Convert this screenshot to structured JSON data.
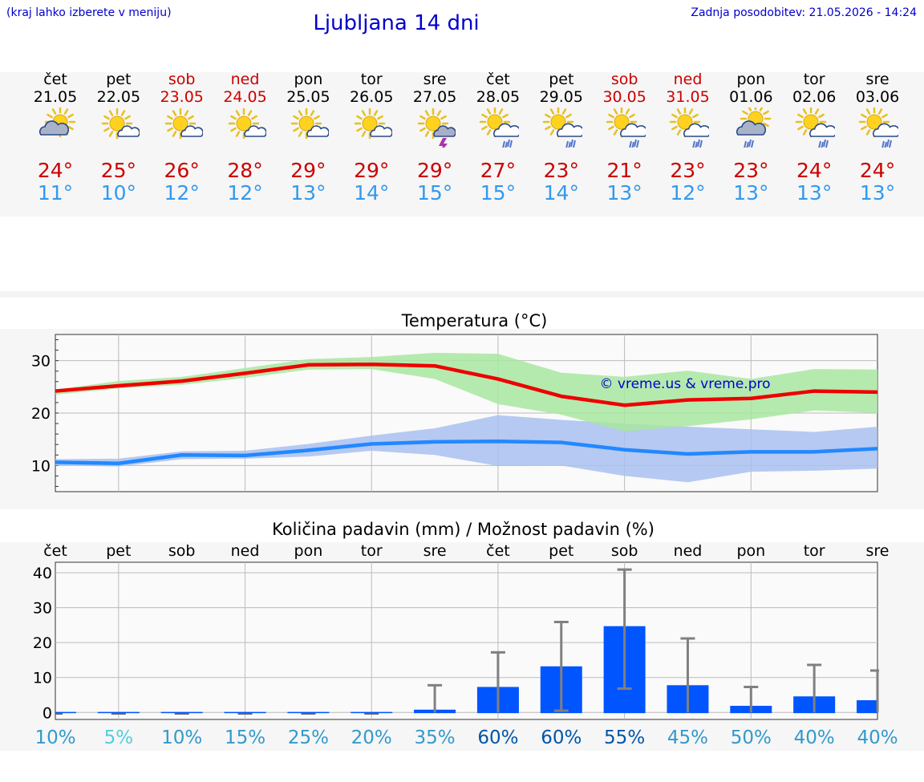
{
  "header": {
    "hint": "(kraj lahko izberete v meniju)",
    "title": "Ljubljana 14 dni",
    "updated": "Zadnja posodobitev: 21.05.2026 - 14:24"
  },
  "days": [
    {
      "name": "čet",
      "date": "21.05",
      "weekend": false,
      "tmax": "24°",
      "tmin": "11°",
      "icon": "cloudy-sun-icon"
    },
    {
      "name": "pet",
      "date": "22.05",
      "weekend": false,
      "tmax": "25°",
      "tmin": "10°",
      "icon": "partly-cloudy-icon"
    },
    {
      "name": "sob",
      "date": "23.05",
      "weekend": true,
      "tmax": "26°",
      "tmin": "12°",
      "icon": "partly-cloudy-icon"
    },
    {
      "name": "ned",
      "date": "24.05",
      "weekend": true,
      "tmax": "28°",
      "tmin": "12°",
      "icon": "partly-cloudy-icon"
    },
    {
      "name": "pon",
      "date": "25.05",
      "weekend": false,
      "tmax": "29°",
      "tmin": "13°",
      "icon": "partly-cloudy-icon"
    },
    {
      "name": "tor",
      "date": "26.05",
      "weekend": false,
      "tmax": "29°",
      "tmin": "14°",
      "icon": "partly-cloudy-icon"
    },
    {
      "name": "sre",
      "date": "27.05",
      "weekend": false,
      "tmax": "29°",
      "tmin": "15°",
      "icon": "thunderstorm-icon"
    },
    {
      "name": "čet",
      "date": "28.05",
      "weekend": false,
      "tmax": "27°",
      "tmin": "15°",
      "icon": "sun-rain-icon"
    },
    {
      "name": "pet",
      "date": "29.05",
      "weekend": false,
      "tmax": "23°",
      "tmin": "14°",
      "icon": "sun-rain-icon"
    },
    {
      "name": "sob",
      "date": "30.05",
      "weekend": true,
      "tmax": "21°",
      "tmin": "13°",
      "icon": "sun-rain-icon"
    },
    {
      "name": "ned",
      "date": "31.05",
      "weekend": true,
      "tmax": "23°",
      "tmin": "12°",
      "icon": "sun-rain-icon"
    },
    {
      "name": "pon",
      "date": "01.06",
      "weekend": false,
      "tmax": "23°",
      "tmin": "13°",
      "icon": "cloudy-rain-icon"
    },
    {
      "name": "tor",
      "date": "02.06",
      "weekend": false,
      "tmax": "24°",
      "tmin": "13°",
      "icon": "sun-rain-icon"
    },
    {
      "name": "sre",
      "date": "03.06",
      "weekend": false,
      "tmax": "24°",
      "tmin": "13°",
      "icon": "sun-rain-icon"
    }
  ],
  "colors": {
    "title": "#0000cc",
    "weekend": "#cc0000",
    "tmax_line": "#ee0000",
    "tmin_line": "#2288ff",
    "tmax_band": "#a8e6a0",
    "tmin_band": "#a8c0f0",
    "precip_bar": "#0055ff",
    "error_bar": "#808080"
  },
  "chart_data": [
    {
      "type": "line",
      "title": "Temperatura (°C)",
      "watermark": "© vreme.us & vreme.pro",
      "ylim": [
        5,
        35
      ],
      "yticks": [
        "10",
        "20",
        "30"
      ],
      "grid": true,
      "series": [
        {
          "role": "tmax",
          "values": [
            24.2,
            25.2,
            26.1,
            27.6,
            29.2,
            29.3,
            29.0,
            26.5,
            23.2,
            21.5,
            22.5,
            22.8,
            24.2,
            24.0
          ],
          "band_low": [
            23.5,
            24.7,
            25.4,
            26.7,
            28.3,
            28.4,
            26.5,
            21.7,
            19.7,
            16.5,
            17.5,
            18.8,
            20.5,
            20.0
          ],
          "band_high": [
            24.5,
            26.1,
            26.9,
            28.6,
            30.3,
            30.7,
            31.5,
            31.3,
            27.7,
            26.9,
            28.1,
            26.5,
            28.4,
            28.3
          ]
        },
        {
          "role": "tmin",
          "values": [
            10.6,
            10.4,
            12.0,
            11.9,
            12.9,
            14.1,
            14.5,
            14.6,
            14.4,
            13.0,
            12.2,
            12.6,
            12.6,
            13.2
          ],
          "band_low": [
            10.0,
            9.8,
            11.2,
            11.3,
            11.7,
            12.8,
            12.0,
            9.9,
            10.0,
            8.0,
            6.8,
            8.8,
            9.0,
            9.4
          ],
          "band_high": [
            11.2,
            11.3,
            12.7,
            12.8,
            14.1,
            15.7,
            17.1,
            19.6,
            18.7,
            18.0,
            17.4,
            16.9,
            16.4,
            17.4
          ]
        }
      ]
    },
    {
      "type": "bar",
      "title": "Količina padavin (mm) / Možnost padavin (%)",
      "categories": [
        "čet",
        "pet",
        "sob",
        "ned",
        "pon",
        "tor",
        "sre",
        "čet",
        "pet",
        "sob",
        "ned",
        "pon",
        "tor",
        "sre"
      ],
      "ylim": [
        -2,
        43
      ],
      "yticks": [
        "0",
        "10",
        "20",
        "30",
        "40"
      ],
      "grid": true,
      "values": [
        0,
        0,
        0,
        0,
        0,
        0,
        0.8,
        7.3,
        13.2,
        24.7,
        7.8,
        1.9,
        4.6,
        3.5
      ],
      "err_low": [
        0,
        0,
        0,
        0,
        0,
        0,
        0,
        0,
        0.5,
        6.8,
        0,
        0,
        0,
        0
      ],
      "err_high": [
        0,
        0,
        0,
        0,
        0,
        0,
        7.8,
        17.2,
        25.9,
        40.9,
        21.2,
        7.3,
        13.6,
        12.0
      ],
      "probability": [
        "10%",
        "5%",
        "10%",
        "15%",
        "25%",
        "20%",
        "35%",
        "60%",
        "60%",
        "55%",
        "45%",
        "50%",
        "40%",
        "40%"
      ],
      "prob_colors": [
        "#3399cc",
        "#55ccdd",
        "#3399cc",
        "#3399cc",
        "#3399cc",
        "#3399cc",
        "#3399cc",
        "#0055aa",
        "#0055aa",
        "#0055aa",
        "#3399cc",
        "#3399cc",
        "#3399cc",
        "#3399cc"
      ]
    }
  ]
}
